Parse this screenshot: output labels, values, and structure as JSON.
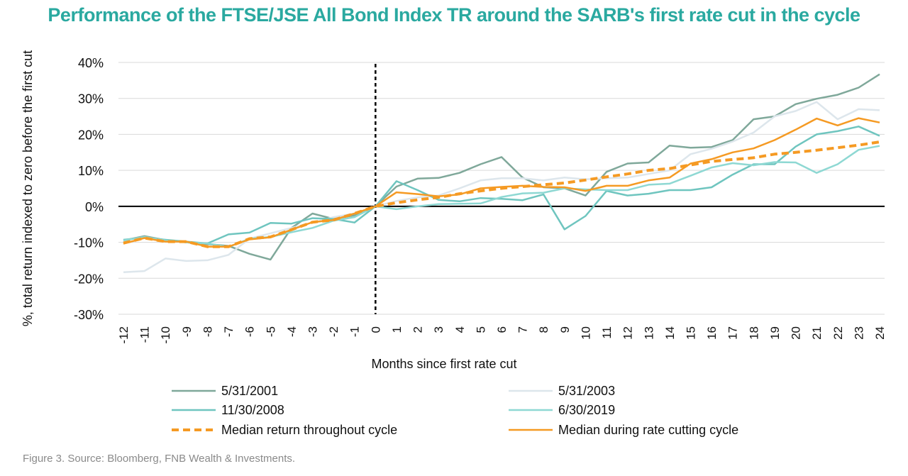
{
  "title": "Performance of the FTSE/JSE All Bond Index TR around the SARB's first rate cut in the cycle",
  "caption": "Figure 3. Source: Bloomberg, FNB Wealth & Investments.",
  "chart_data": {
    "type": "line",
    "xlabel": "Months since first rate cut",
    "ylabel": "%, total return indexed to zero before the first cut",
    "ylim": [
      -30,
      40
    ],
    "yticks": [
      -30,
      -20,
      -10,
      0,
      10,
      20,
      30,
      40
    ],
    "ytick_labels": [
      "-30%",
      "-20%",
      "-10%",
      "0%",
      "10%",
      "20%",
      "30%",
      "40%"
    ],
    "x": [
      -12,
      -11,
      -10,
      -9,
      -8,
      -7,
      -6,
      -5,
      -4,
      -3,
      -2,
      -1,
      0,
      1,
      2,
      3,
      4,
      5,
      6,
      7,
      8,
      9,
      10,
      11,
      12,
      13,
      14,
      15,
      16,
      17,
      18,
      19,
      20,
      21,
      22,
      23,
      24
    ],
    "vline_x": 0,
    "legend_position": "bottom",
    "series": [
      {
        "name": "5/31/2001",
        "color": "#7fa89a",
        "dash": false,
        "values": [
          -9.5,
          -8.3,
          -9.4,
          -10.0,
          -10.5,
          -11.0,
          -13.2,
          -14.8,
          -6.0,
          -2.0,
          -3.5,
          -2.5,
          0.0,
          5.5,
          7.7,
          7.9,
          9.3,
          11.7,
          13.7,
          8.0,
          5.3,
          5.0,
          3.0,
          9.6,
          11.9,
          12.2,
          16.9,
          16.3,
          16.5,
          18.4,
          24.2,
          25.0,
          28.4,
          29.9,
          31.0,
          33.0,
          36.7
        ]
      },
      {
        "name": "5/31/2003",
        "color": "#dde6ec",
        "dash": false,
        "values": [
          -18.3,
          -18.0,
          -14.5,
          -15.2,
          -15.0,
          -13.5,
          -9.0,
          -7.5,
          -6.0,
          -4.5,
          -3.0,
          -2.0,
          0.0,
          1.5,
          2.5,
          3.0,
          5.0,
          7.2,
          7.8,
          7.8,
          7.2,
          8.0,
          7.5,
          7.8,
          8.0,
          9.0,
          10.0,
          14.5,
          16.0,
          18.0,
          20.5,
          25.0,
          26.5,
          29.0,
          24.2,
          27.0,
          26.7
        ]
      },
      {
        "name": "11/30/2008",
        "color": "#6fc5bf",
        "dash": false,
        "values": [
          -9.3,
          -8.7,
          -9.3,
          -9.8,
          -10.3,
          -7.8,
          -7.3,
          -4.6,
          -4.8,
          -3.3,
          -3.5,
          -4.5,
          0.0,
          7.0,
          4.5,
          1.8,
          1.4,
          2.3,
          2.1,
          1.7,
          3.3,
          -6.4,
          -2.7,
          4.3,
          3.0,
          3.5,
          4.5,
          4.5,
          5.3,
          8.8,
          11.7,
          11.7,
          16.6,
          20.0,
          20.9,
          22.2,
          19.6
        ]
      },
      {
        "name": "6/30/2019",
        "color": "#8ed8d3",
        "dash": false,
        "values": [
          -9.5,
          -8.5,
          -9.5,
          -10.0,
          -10.3,
          -11.3,
          -9.0,
          -8.5,
          -7.2,
          -6.0,
          -4.0,
          -3.0,
          0.0,
          -0.8,
          0.0,
          0.6,
          0.7,
          0.8,
          2.6,
          3.6,
          3.8,
          5.0,
          4.7,
          4.5,
          4.5,
          6.0,
          6.3,
          8.5,
          10.8,
          12.0,
          11.4,
          12.3,
          12.2,
          9.3,
          11.7,
          15.7,
          16.8
        ]
      },
      {
        "name": "Median return throughout cycle",
        "color": "#f59a23",
        "dash": true,
        "values": [
          -10.2,
          -8.8,
          -9.8,
          -9.8,
          -11.2,
          -11.2,
          -9.0,
          -8.5,
          -6.5,
          -4.4,
          -3.8,
          -2.0,
          0.0,
          1.0,
          1.8,
          2.5,
          3.5,
          4.3,
          5.0,
          5.5,
          6.0,
          6.5,
          7.3,
          8.2,
          9.0,
          10.0,
          10.5,
          11.5,
          12.5,
          13.0,
          13.5,
          14.5,
          15.0,
          15.6,
          16.3,
          17.0,
          17.9
        ]
      },
      {
        "name": "Median during rate cutting cycle",
        "color": "#f59a23",
        "dash": false,
        "values": [
          -10.4,
          -8.8,
          -9.8,
          -9.8,
          -11.2,
          -11.2,
          -9.2,
          -8.6,
          -6.5,
          -4.4,
          -3.8,
          -2.0,
          0.0,
          3.9,
          3.4,
          2.8,
          3.3,
          5.0,
          5.4,
          5.7,
          5.4,
          5.3,
          4.3,
          5.7,
          5.7,
          7.2,
          8.0,
          11.9,
          13.1,
          15.0,
          16.1,
          18.4,
          21.3,
          24.4,
          22.5,
          24.5,
          23.3
        ]
      }
    ]
  }
}
